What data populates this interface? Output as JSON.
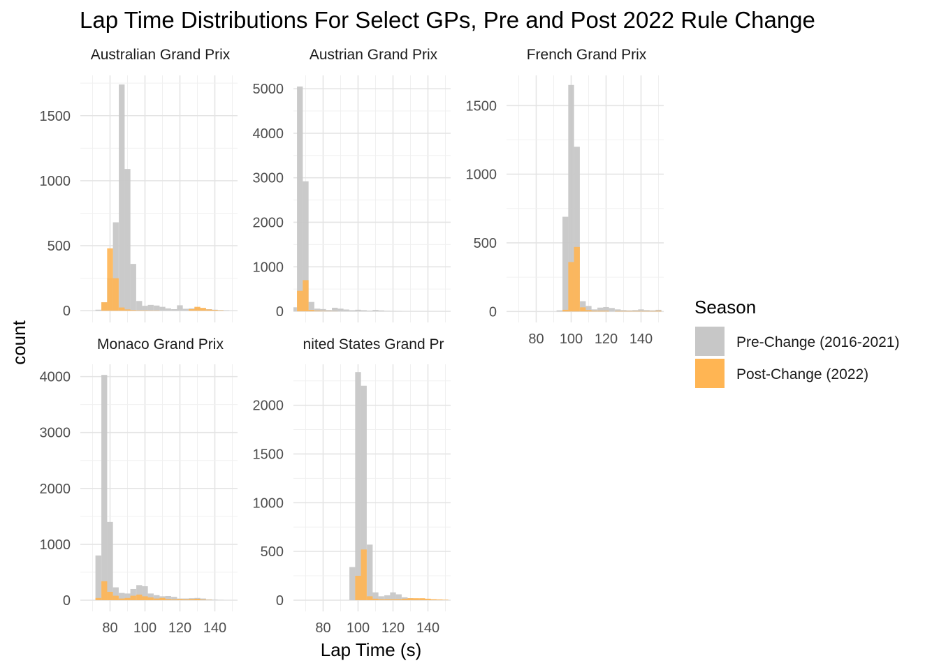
{
  "chart_data": {
    "type": "histogram",
    "title": "Lap Time Distributions For Select GPs, Pre and Post 2022 Rule Change",
    "xlabel": "Lap Time (s)",
    "ylabel": "count",
    "x_ticks": [
      80,
      100,
      120,
      140
    ],
    "xlim": [
      63,
      153
    ],
    "bin_width": 3.33,
    "legend": {
      "title": "Season",
      "position": "right",
      "entries": [
        {
          "name": "Pre-Change (2016-2021)",
          "color": "#c7c7c7"
        },
        {
          "name": "Post-Change (2022)",
          "color": "#ffb553"
        }
      ]
    },
    "panels": [
      {
        "name": "Australian Grand Prix",
        "ylim": [
          -90,
          1810
        ],
        "y_ticks": [
          0,
          500,
          1000,
          1500
        ],
        "show_x_ticks": false,
        "series": [
          {
            "name": "Pre-Change (2016-2021)",
            "bins": [
              [
                73.3,
                8
              ],
              [
                76.7,
                65
              ],
              [
                80,
                250
              ],
              [
                83.3,
                680
              ],
              [
                86.7,
                1740
              ],
              [
                90,
                1090
              ],
              [
                93.3,
                360
              ],
              [
                96.7,
                75
              ],
              [
                100,
                38
              ],
              [
                103.3,
                45
              ],
              [
                106.7,
                40
              ],
              [
                110,
                30
              ],
              [
                113.3,
                18
              ],
              [
                116.7,
                12
              ],
              [
                120,
                42
              ],
              [
                123.3,
                15
              ],
              [
                126.7,
                18
              ],
              [
                130,
                25
              ],
              [
                133.3,
                18
              ],
              [
                136.7,
                12
              ],
              [
                140,
                8
              ],
              [
                143.3,
                5
              ],
              [
                146.7,
                3
              ]
            ]
          },
          {
            "name": "Post-Change (2022)",
            "bins": [
              [
                76.7,
                65
              ],
              [
                80,
                480
              ],
              [
                83.3,
                250
              ],
              [
                86.7,
                25
              ],
              [
                90,
                10
              ],
              [
                93.3,
                5
              ],
              [
                96.7,
                3
              ],
              [
                100,
                3
              ],
              [
                103.3,
                2
              ],
              [
                106.7,
                2
              ],
              [
                126.7,
                12
              ],
              [
                130,
                30
              ],
              [
                133.3,
                22
              ],
              [
                136.7,
                10
              ],
              [
                140,
                6
              ],
              [
                143.3,
                3
              ]
            ]
          }
        ]
      },
      {
        "name": "Austrian Grand Prix",
        "ylim": [
          -250,
          5300
        ],
        "y_ticks": [
          0,
          1000,
          2000,
          3000,
          4000,
          5000
        ],
        "show_x_ticks": false,
        "series": [
          {
            "name": "Pre-Change (2016-2021)",
            "bins": [
              [
                63.3,
                90
              ],
              [
                66.7,
                5050
              ],
              [
                70,
                2920
              ],
              [
                73.3,
                210
              ],
              [
                76.7,
                60
              ],
              [
                80,
                50
              ],
              [
                83.3,
                30
              ],
              [
                86.7,
                80
              ],
              [
                90,
                60
              ],
              [
                93.3,
                40
              ],
              [
                96.7,
                25
              ],
              [
                100,
                35
              ],
              [
                103.3,
                25
              ],
              [
                106.7,
                15
              ],
              [
                110,
                30
              ],
              [
                113.3,
                20
              ],
              [
                116.7,
                10
              ],
              [
                120,
                5
              ],
              [
                123.3,
                3
              ]
            ]
          },
          {
            "name": "Post-Change (2022)",
            "bins": [
              [
                66.7,
                460
              ],
              [
                70,
                700
              ],
              [
                73.3,
                30
              ],
              [
                76.7,
                15
              ],
              [
                80,
                8
              ],
              [
                83.3,
                5
              ],
              [
                86.7,
                3
              ]
            ]
          }
        ]
      },
      {
        "name": "French Grand Prix",
        "ylim": [
          -80,
          1720
        ],
        "y_ticks": [
          0,
          500,
          1000,
          1500
        ],
        "show_x_ticks": true,
        "series": [
          {
            "name": "Pre-Change (2016-2021)",
            "bins": [
              [
                93.3,
                8
              ],
              [
                96.7,
                690
              ],
              [
                100,
                1650
              ],
              [
                103.3,
                1200
              ],
              [
                106.7,
                75
              ],
              [
                110,
                40
              ],
              [
                113.3,
                15
              ],
              [
                116.7,
                28
              ],
              [
                120,
                32
              ],
              [
                123.3,
                25
              ],
              [
                126.7,
                15
              ],
              [
                130,
                10
              ],
              [
                133.3,
                8
              ],
              [
                136.7,
                10
              ],
              [
                140,
                15
              ],
              [
                143.3,
                10
              ],
              [
                146.7,
                8
              ],
              [
                150,
                12
              ]
            ]
          },
          {
            "name": "Post-Change (2022)",
            "bins": [
              [
                96.7,
                12
              ],
              [
                100,
                360
              ],
              [
                103.3,
                470
              ],
              [
                106.7,
                30
              ],
              [
                110,
                10
              ],
              [
                113.3,
                5
              ],
              [
                116.7,
                5
              ],
              [
                120,
                5
              ],
              [
                126.7,
                3
              ],
              [
                130,
                3
              ],
              [
                133.3,
                3
              ],
              [
                136.7,
                3
              ],
              [
                140,
                3
              ],
              [
                143.3,
                3
              ],
              [
                146.7,
                3
              ],
              [
                150,
                5
              ]
            ]
          }
        ]
      },
      {
        "name": "Monaco Grand Prix",
        "ylim": [
          -200,
          4220
        ],
        "y_ticks": [
          0,
          1000,
          2000,
          3000,
          4000
        ],
        "show_x_ticks": true,
        "series": [
          {
            "name": "Pre-Change (2016-2021)",
            "bins": [
              [
                73.3,
                800
              ],
              [
                76.7,
                4030
              ],
              [
                80,
                1400
              ],
              [
                83.3,
                230
              ],
              [
                86.7,
                130
              ],
              [
                90,
                120
              ],
              [
                93.3,
                200
              ],
              [
                96.7,
                270
              ],
              [
                100,
                250
              ],
              [
                103.3,
                120
              ],
              [
                106.7,
                90
              ],
              [
                110,
                70
              ],
              [
                113.3,
                75
              ],
              [
                116.7,
                60
              ],
              [
                120,
                30
              ],
              [
                123.3,
                30
              ],
              [
                126.7,
                35
              ],
              [
                130,
                40
              ],
              [
                133.3,
                30
              ],
              [
                136.7,
                15
              ],
              [
                140,
                10
              ],
              [
                143.3,
                5
              ]
            ]
          },
          {
            "name": "Post-Change (2022)",
            "bins": [
              [
                73.3,
                40
              ],
              [
                76.7,
                340
              ],
              [
                80,
                150
              ],
              [
                83.3,
                80
              ],
              [
                86.7,
                30
              ],
              [
                90,
                40
              ],
              [
                93.3,
                80
              ],
              [
                96.7,
                100
              ],
              [
                100,
                70
              ],
              [
                103.3,
                50
              ],
              [
                106.7,
                30
              ],
              [
                110,
                40
              ],
              [
                113.3,
                20
              ],
              [
                116.7,
                15
              ],
              [
                120,
                20
              ],
              [
                123.3,
                15
              ],
              [
                126.7,
                20
              ],
              [
                130,
                25
              ],
              [
                133.3,
                10
              ],
              [
                136.7,
                5
              ]
            ]
          }
        ]
      },
      {
        "name": "nited States Grand Pr",
        "ylim": [
          -115,
          2420
        ],
        "y_ticks": [
          0,
          500,
          1000,
          1500,
          2000
        ],
        "show_x_ticks": true,
        "series": [
          {
            "name": "Pre-Change (2016-2021)",
            "bins": [
              [
                96.7,
                340
              ],
              [
                100,
                2340
              ],
              [
                103.3,
                2200
              ],
              [
                106.7,
                570
              ],
              [
                110,
                80
              ],
              [
                113.3,
                40
              ],
              [
                116.7,
                50
              ],
              [
                120,
                80
              ],
              [
                123.3,
                60
              ],
              [
                126.7,
                30
              ],
              [
                130,
                20
              ],
              [
                133.3,
                15
              ],
              [
                136.7,
                15
              ],
              [
                140,
                10
              ],
              [
                143.3,
                8
              ],
              [
                146.7,
                5
              ],
              [
                150,
                3
              ]
            ]
          },
          {
            "name": "Post-Change (2022)",
            "bins": [
              [
                100,
                250
              ],
              [
                103.3,
                520
              ],
              [
                106.7,
                40
              ],
              [
                110,
                15
              ],
              [
                113.3,
                10
              ],
              [
                116.7,
                10
              ],
              [
                120,
                10
              ],
              [
                123.3,
                10
              ],
              [
                126.7,
                15
              ],
              [
                130,
                20
              ],
              [
                133.3,
                20
              ],
              [
                136.7,
                20
              ],
              [
                140,
                15
              ],
              [
                143.3,
                10
              ],
              [
                146.7,
                8
              ],
              [
                150,
                5
              ]
            ]
          }
        ]
      }
    ]
  }
}
